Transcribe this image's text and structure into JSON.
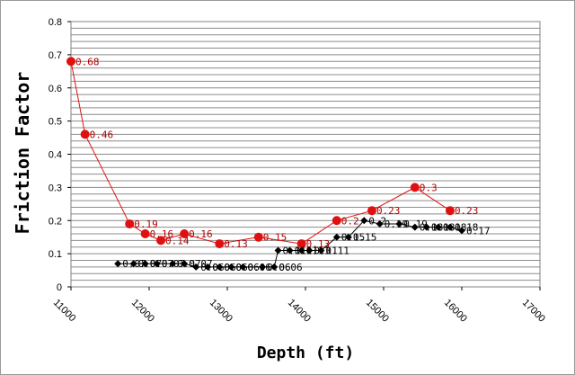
{
  "chart_data": {
    "type": "scatter",
    "xlabel": "Depth (ft)",
    "ylabel": "Friction Factor",
    "xlim": [
      11000,
      17000
    ],
    "ylim": [
      0,
      0.8
    ],
    "x_ticks": [
      "11000",
      "12000",
      "13000",
      "14000",
      "15000",
      "16000",
      "17000"
    ],
    "y_ticks": [
      "0",
      "0.1",
      "0.2",
      "0.3",
      "0.4",
      "0.5",
      "0.6",
      "0.7",
      "0.8"
    ],
    "grid": true,
    "legend": "none",
    "series": [
      {
        "color": "#e01010",
        "marker": "circle",
        "line": true,
        "points": [
          {
            "x": 11000,
            "y": 0.68,
            "label": "0.68"
          },
          {
            "x": 11180,
            "y": 0.46,
            "label": "0.46"
          },
          {
            "x": 11750,
            "y": 0.19,
            "label": "0.19"
          },
          {
            "x": 11950,
            "y": 0.16,
            "label": "0.16"
          },
          {
            "x": 12150,
            "y": 0.14,
            "label": "0.14"
          },
          {
            "x": 12450,
            "y": 0.16,
            "label": "0.16"
          },
          {
            "x": 12900,
            "y": 0.13,
            "label": "0.13"
          },
          {
            "x": 13400,
            "y": 0.15,
            "label": "0.15"
          },
          {
            "x": 13950,
            "y": 0.13,
            "label": "0.13"
          },
          {
            "x": 14400,
            "y": 0.2,
            "label": "0.2"
          },
          {
            "x": 14850,
            "y": 0.23,
            "label": "0.23"
          },
          {
            "x": 15400,
            "y": 0.3,
            "label": "0.3"
          },
          {
            "x": 15850,
            "y": 0.23,
            "label": "0.23"
          }
        ]
      },
      {
        "color": "#000000",
        "marker": "diamond",
        "line": true,
        "points": [
          {
            "x": 11600,
            "y": 0.07,
            "label": "0.07"
          },
          {
            "x": 11800,
            "y": 0.07,
            "label": "0.07"
          },
          {
            "x": 11950,
            "y": 0.07,
            "label": "0.07"
          },
          {
            "x": 12100,
            "y": 0.07,
            "label": "0.07"
          },
          {
            "x": 12300,
            "y": 0.07,
            "label": "0.07"
          },
          {
            "x": 12450,
            "y": 0.07,
            "label": "0.07"
          },
          {
            "x": 12600,
            "y": 0.06,
            "label": "0.06"
          },
          {
            "x": 12750,
            "y": 0.06,
            "label": "0.06"
          },
          {
            "x": 12900,
            "y": 0.06,
            "label": "0.06"
          },
          {
            "x": 13050,
            "y": 0.06,
            "label": "0.06"
          },
          {
            "x": 13200,
            "y": 0.06,
            "label": "0.06"
          },
          {
            "x": 13450,
            "y": 0.06,
            "label": "0.06"
          },
          {
            "x": 13600,
            "y": 0.06,
            "label": "0.06"
          },
          {
            "x": 13650,
            "y": 0.11,
            "label": "0.11"
          },
          {
            "x": 13800,
            "y": 0.11,
            "label": "0.11"
          },
          {
            "x": 13950,
            "y": 0.11,
            "label": "0.11"
          },
          {
            "x": 14050,
            "y": 0.11,
            "label": "0.11"
          },
          {
            "x": 14200,
            "y": 0.11,
            "label": "0.11"
          },
          {
            "x": 14400,
            "y": 0.15,
            "label": "0.15"
          },
          {
            "x": 14550,
            "y": 0.15,
            "label": "0.15"
          },
          {
            "x": 14750,
            "y": 0.2,
            "label": "0.2"
          },
          {
            "x": 14950,
            "y": 0.19,
            "label": "0.19"
          },
          {
            "x": 15200,
            "y": 0.19,
            "label": "0.19"
          },
          {
            "x": 15400,
            "y": 0.18,
            "label": "0.18"
          },
          {
            "x": 15550,
            "y": 0.18,
            "label": "0.18"
          },
          {
            "x": 15700,
            "y": 0.18,
            "label": "0.18"
          },
          {
            "x": 15850,
            "y": 0.18,
            "label": "0.18"
          },
          {
            "x": 16000,
            "y": 0.17,
            "label": "0.17"
          }
        ]
      }
    ]
  }
}
